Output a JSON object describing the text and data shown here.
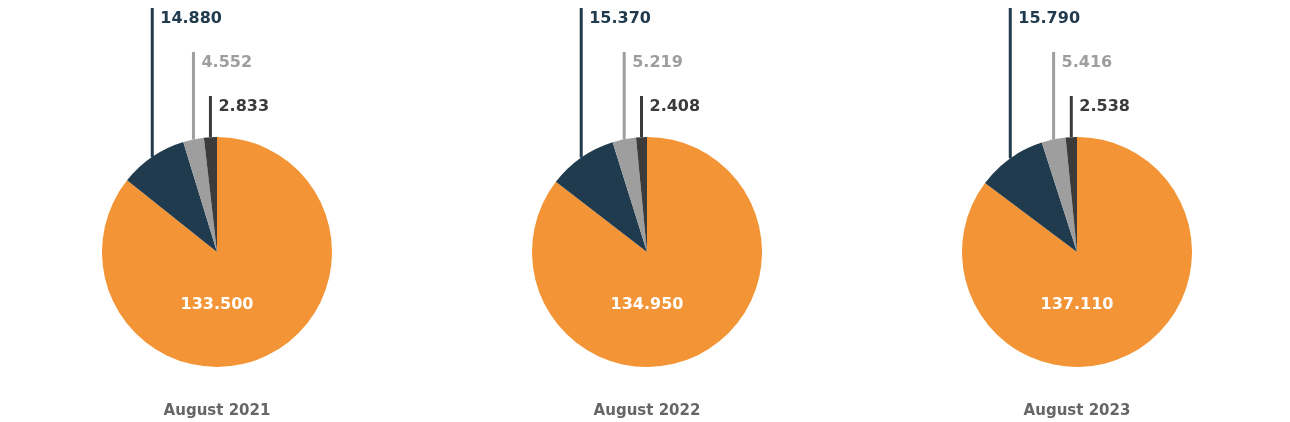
{
  "chart_data": [
    {
      "type": "pie",
      "title": "August 2021",
      "categories": [
        null,
        null,
        null,
        null
      ],
      "values": [
        133500,
        14880,
        4552,
        2833
      ],
      "colors": [
        "#f39436",
        "#213b4e",
        "#9e9e9e",
        "#3b3b3b"
      ],
      "value_labels": [
        "133.500",
        "14.880",
        "4.552",
        "2.833"
      ]
    },
    {
      "type": "pie",
      "title": "August 2022",
      "categories": [
        null,
        null,
        null,
        null
      ],
      "values": [
        134950,
        15370,
        5219,
        2408
      ],
      "colors": [
        "#f39436",
        "#213b4e",
        "#9e9e9e",
        "#3b3b3b"
      ],
      "value_labels": [
        "134.950",
        "15.370",
        "5.219",
        "2.408"
      ]
    },
    {
      "type": "pie",
      "title": "August 2023",
      "categories": [
        null,
        null,
        null,
        null
      ],
      "values": [
        137110,
        15790,
        5416,
        2538
      ],
      "colors": [
        "#f39436",
        "#213b4e",
        "#9e9e9e",
        "#3b3b3b"
      ],
      "value_labels": [
        "137.110",
        "15.790",
        "5.416",
        "2.538"
      ]
    }
  ]
}
